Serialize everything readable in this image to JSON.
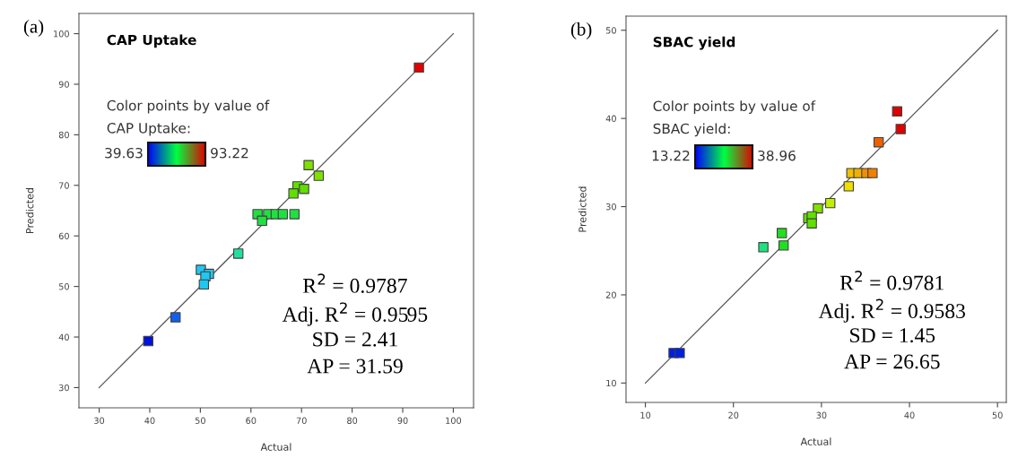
{
  "chart_data": [
    {
      "type": "scatter",
      "title": "CAP Uptake",
      "xlabel": "Actual",
      "ylabel": "Predicted",
      "legend_title": "Color points by value of\nCAP Uptake:",
      "xlim": [
        26,
        104
      ],
      "ylim": [
        26,
        104
      ],
      "xticks": [
        30,
        40,
        50,
        60,
        70,
        80,
        90,
        100
      ],
      "yticks": [
        30,
        40,
        50,
        60,
        70,
        80,
        90,
        100
      ],
      "marker": "square",
      "grid": false,
      "series": [
        {
          "type": "scatter",
          "x": [
            93.2,
            71.4,
            73.4,
            69.2,
            70.5,
            68.4,
            61.3,
            63.4,
            64.9,
            66.3,
            68.6,
            62.2,
            57.5,
            50.1,
            51.7,
            51.0,
            50.7,
            45.1,
            39.7
          ],
          "values": [
            93.3,
            74.0,
            71.9,
            69.8,
            69.3,
            68.4,
            64.3,
            64.3,
            64.3,
            64.3,
            64.3,
            63.0,
            56.5,
            53.3,
            52.5,
            52.0,
            50.4,
            43.9,
            39.2
          ],
          "colors": [
            "#e00000",
            "#80e000",
            "#80e000",
            "#60e000",
            "#60e000",
            "#60e000",
            "#20e040",
            "#20e040",
            "#20e040",
            "#20e040",
            "#20e040",
            "#20e040",
            "#20e0a0",
            "#20c8f0",
            "#20c8f0",
            "#20c8f0",
            "#20c8f0",
            "#1060f0",
            "#0010e0"
          ]
        },
        {
          "type": "line",
          "x": [
            30,
            100
          ],
          "values": [
            30,
            100
          ],
          "color": "#555555",
          "marker": "none"
        }
      ],
      "annotations": [
        "(a)",
        "39.63",
        "93.22",
        "R$^{2}$ = 0.9787",
        "Adj. R$^{2}$ = 0.9595",
        "SD = 2.41",
        "AP = 31.59"
      ]
    },
    {
      "type": "scatter",
      "title": "SBAC yield",
      "xlabel": "Actual",
      "ylabel": "Predicted",
      "legend_title": "Color points by value of\nSBAC yield:",
      "xlim": [
        7.8,
        51
      ],
      "ylim": [
        7.8,
        51.6
      ],
      "xticks": [
        10,
        20,
        30,
        40,
        50
      ],
      "yticks": [
        10,
        20,
        30,
        40,
        50
      ],
      "marker": "square",
      "grid": false,
      "series": [
        {
          "type": "scatter",
          "x": [
            38.6,
            39.0,
            36.5,
            33.4,
            34.2,
            35.1,
            35.8,
            33.1,
            31.0,
            29.6,
            28.5,
            28.9,
            28.9,
            25.5,
            25.7,
            23.4,
            13.2,
            13.9
          ],
          "values": [
            40.8,
            38.8,
            37.3,
            33.8,
            33.8,
            33.8,
            33.8,
            32.3,
            30.4,
            29.8,
            28.7,
            28.9,
            28.1,
            27.0,
            25.6,
            25.4,
            13.4,
            13.4
          ],
          "colors": [
            "#e00000",
            "#e00000",
            "#f06000",
            "#f0c000",
            "#f0b000",
            "#f09000",
            "#f08000",
            "#f0e000",
            "#c0f000",
            "#80e000",
            "#60e000",
            "#60e000",
            "#60e000",
            "#20e020",
            "#20e020",
            "#20e080",
            "#0020e0",
            "#0020e0"
          ]
        },
        {
          "type": "line",
          "x": [
            10,
            50
          ],
          "values": [
            10,
            50
          ],
          "color": "#555555",
          "marker": "none"
        }
      ],
      "annotations": [
        "(b)",
        "13.22",
        "38.96",
        "R$^{2}$ = 0.9781",
        "Adj. R$^{2}$ = 0.9583",
        "SD = 1.45",
        "AP = 26.65"
      ]
    }
  ]
}
